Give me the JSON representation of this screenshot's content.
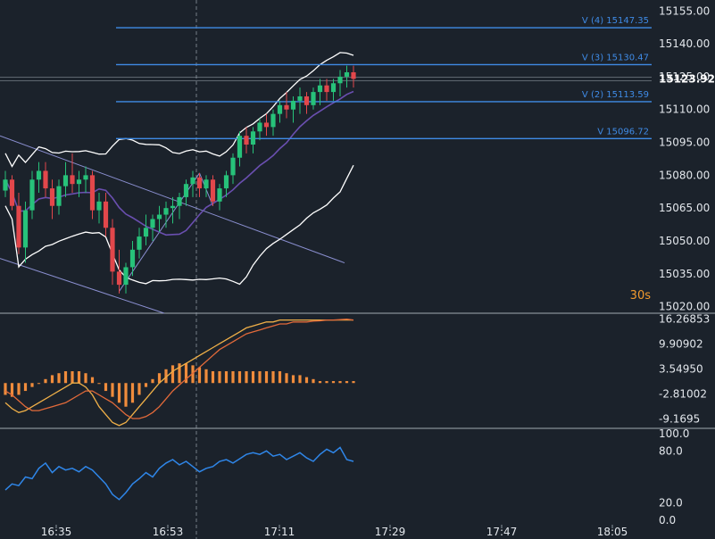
{
  "timeframe_label": "30s",
  "colors": {
    "background": "#1b222b",
    "bull": "#27c27a",
    "bear": "#e2474b",
    "level": "#3f8be6",
    "bollinger": "#ffffff",
    "ma": "#6a4fb0",
    "macd_hist": "#f08c3c",
    "macd_line": "#f0b048",
    "signal_line": "#e26a3a",
    "rsi": "#2f86e8",
    "channel": "#8a8fd0"
  },
  "chart_data": [
    {
      "type": "candlestick",
      "panel": "price",
      "ylim": [
        15017,
        15160
      ],
      "y_ticks": [
        "15155.00",
        "15140.00",
        "15125.00",
        "15110.00",
        "15095.00",
        "15080.00",
        "15065.00",
        "15050.00",
        "15035.00",
        "15020.00"
      ],
      "last_price": "15123.92",
      "x_ticks": [
        "16:35",
        "16:53",
        "17:11",
        "17:29",
        "17:47",
        "18:05"
      ],
      "candles": [
        [
          15073,
          15082,
          15070,
          15078
        ],
        [
          15078,
          15080,
          15064,
          15066
        ],
        [
          15066,
          15072,
          15044,
          15047
        ],
        [
          15047,
          15068,
          15040,
          15064
        ],
        [
          15064,
          15082,
          15060,
          15078
        ],
        [
          15078,
          15086,
          15072,
          15082
        ],
        [
          15082,
          15086,
          15070,
          15074
        ],
        [
          15074,
          15078,
          15060,
          15066
        ],
        [
          15066,
          15078,
          15062,
          15075
        ],
        [
          15075,
          15086,
          15070,
          15080
        ],
        [
          15080,
          15090,
          15072,
          15076
        ],
        [
          15076,
          15082,
          15070,
          15078
        ],
        [
          15078,
          15084,
          15072,
          15080
        ],
        [
          15080,
          15082,
          15060,
          15064
        ],
        [
          15064,
          15072,
          15058,
          15068
        ],
        [
          15068,
          15072,
          15052,
          15056
        ],
        [
          15056,
          15060,
          15030,
          15036
        ],
        [
          15036,
          15046,
          15026,
          15030
        ],
        [
          15030,
          15040,
          15026,
          15038
        ],
        [
          15038,
          15050,
          15034,
          15046
        ],
        [
          15046,
          15056,
          15042,
          15052
        ],
        [
          15052,
          15062,
          15048,
          15056
        ],
        [
          15056,
          15062,
          15050,
          15060
        ],
        [
          15060,
          15066,
          15054,
          15062
        ],
        [
          15062,
          15068,
          15056,
          15065
        ],
        [
          15065,
          15070,
          15058,
          15066
        ],
        [
          15066,
          15072,
          15060,
          15070
        ],
        [
          15070,
          15078,
          15066,
          15076
        ],
        [
          15076,
          15082,
          15070,
          15079
        ],
        [
          15079,
          15081,
          15070,
          15074
        ],
        [
          15074,
          15080,
          15070,
          15078
        ],
        [
          15078,
          15080,
          15066,
          15068
        ],
        [
          15068,
          15076,
          15064,
          15074
        ],
        [
          15074,
          15082,
          15070,
          15080
        ],
        [
          15080,
          15090,
          15076,
          15088
        ],
        [
          15088,
          15100,
          15084,
          15098
        ],
        [
          15098,
          15102,
          15090,
          15094
        ],
        [
          15094,
          15102,
          15090,
          15100
        ],
        [
          15100,
          15106,
          15096,
          15104
        ],
        [
          15104,
          15108,
          15098,
          15102
        ],
        [
          15102,
          15110,
          15098,
          15108
        ],
        [
          15108,
          15114,
          15104,
          15112
        ],
        [
          15112,
          15118,
          15106,
          15110
        ],
        [
          15110,
          15116,
          15104,
          15114
        ],
        [
          15114,
          15120,
          15108,
          15116
        ],
        [
          15116,
          15118,
          15108,
          15112
        ],
        [
          15112,
          15120,
          15110,
          15118
        ],
        [
          15118,
          15124,
          15112,
          15121
        ],
        [
          15121,
          15124,
          15114,
          15118
        ],
        [
          15118,
          15124,
          15114,
          15122
        ],
        [
          15122,
          15128,
          15116,
          15125
        ],
        [
          15125,
          15130,
          15120,
          15127
        ],
        [
          15127,
          15130,
          15120,
          15124
        ]
      ],
      "levels": [
        {
          "label": "V (4) 15147.35",
          "value": 15147.35
        },
        {
          "label": "V (3) 15130.47",
          "value": 15130.47
        },
        {
          "label": "V (2) 15113.59",
          "value": 15113.59
        },
        {
          "label": "V 15096.72",
          "value": 15096.72
        }
      ]
    },
    {
      "type": "macd",
      "panel": "macd",
      "ylim": [
        -11.5,
        17.5
      ],
      "y_ticks": [
        "16.26853",
        "9.90902",
        "3.54950",
        "-2.81002",
        "-9.1695"
      ],
      "histogram": [
        -3,
        -3.5,
        -3,
        -2,
        -1,
        0,
        1,
        2,
        2.5,
        3,
        3,
        3,
        2.5,
        1.5,
        0,
        -2,
        -3.5,
        -5,
        -6,
        -5,
        -3,
        -1,
        1,
        2.5,
        3.5,
        4.5,
        5,
        5,
        4.5,
        4,
        3.5,
        3,
        3,
        3,
        3,
        3,
        3,
        3,
        3,
        3,
        3,
        3,
        2.5,
        2,
        2,
        1.5,
        1,
        0.5,
        0.5,
        0.5,
        0.5,
        0.5,
        0.5
      ],
      "macd_line": [
        -5,
        -6.5,
        -7.5,
        -7,
        -6,
        -5,
        -4,
        -3,
        -2,
        -1,
        0,
        0,
        -1,
        -3,
        -6,
        -8,
        -10,
        -10.8,
        -10,
        -8,
        -6,
        -4,
        -2,
        0,
        1.5,
        3,
        4,
        5,
        6,
        7,
        8,
        9,
        10,
        11,
        12,
        13,
        14,
        14.5,
        15,
        15.5,
        15.5,
        16,
        16,
        16,
        16,
        16,
        16,
        16,
        16,
        16,
        16,
        16,
        16
      ],
      "signal_line": [
        -2,
        -3,
        -4.5,
        -6,
        -7,
        -7,
        -6.5,
        -6,
        -5.5,
        -5,
        -4,
        -3,
        -2,
        -2,
        -3,
        -4,
        -5,
        -6.5,
        -8,
        -9,
        -9,
        -8.5,
        -7.5,
        -6,
        -4,
        -2,
        -0.5,
        1,
        2.5,
        4,
        5.5,
        7,
        8.5,
        9.5,
        10.5,
        11.5,
        12.5,
        13,
        13.5,
        14,
        14.5,
        15,
        15,
        15.5,
        15.5,
        15.5,
        15.7,
        15.8,
        16,
        16,
        16.1,
        16.2,
        16
      ]
    },
    {
      "type": "line",
      "panel": "rsi",
      "ylim": [
        -5,
        105
      ],
      "y_ticks": [
        "100.0",
        "80.0",
        "20.0",
        "0.0"
      ],
      "values": [
        35,
        42,
        40,
        50,
        48,
        60,
        66,
        55,
        62,
        58,
        60,
        56,
        62,
        58,
        50,
        42,
        30,
        24,
        32,
        42,
        48,
        55,
        50,
        60,
        66,
        70,
        64,
        68,
        62,
        56,
        60,
        62,
        68,
        70,
        66,
        71,
        76,
        78,
        76,
        80,
        74,
        76,
        70,
        74,
        78,
        72,
        68,
        76,
        82,
        78,
        84,
        70,
        68
      ]
    }
  ]
}
